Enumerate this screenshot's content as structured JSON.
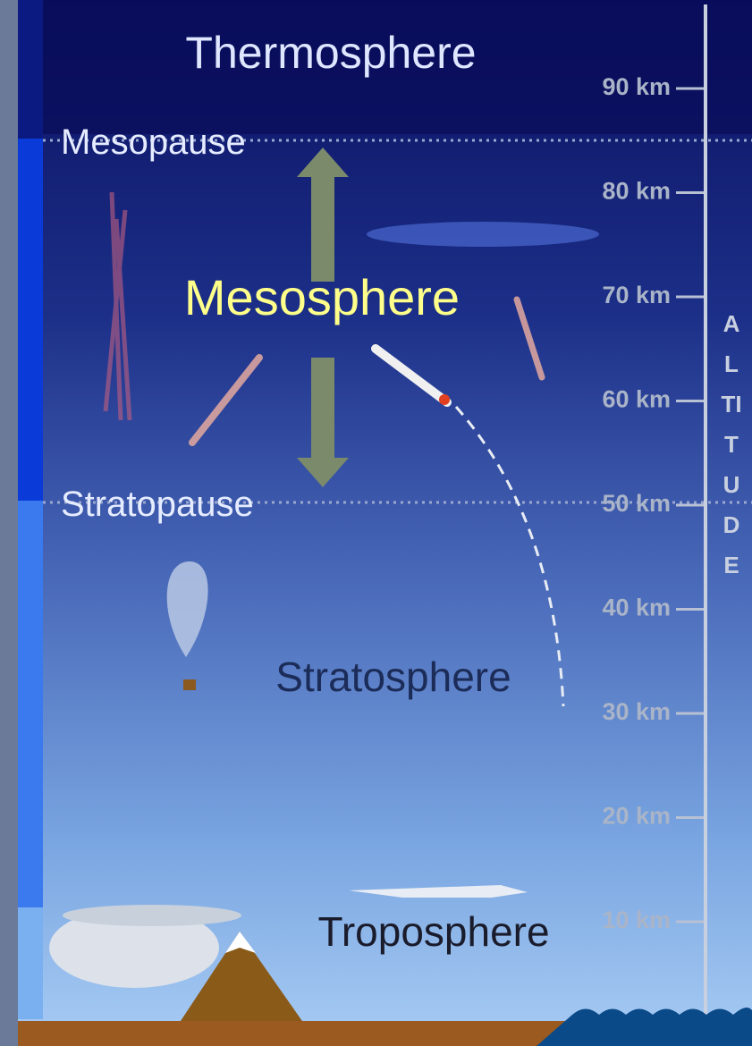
{
  "layers": [
    "Thermosphere",
    "Mesosphere",
    "Stratosphere",
    "Troposphere"
  ],
  "boundaries": [
    "Mesopause",
    "Stratopause"
  ],
  "altitude_ticks": [
    "90 km",
    "80 km",
    "70 km",
    "60 km",
    "50 km",
    "40 km",
    "30 km",
    "20 km",
    "10 km"
  ],
  "axis_label": "ALTITUDE"
}
